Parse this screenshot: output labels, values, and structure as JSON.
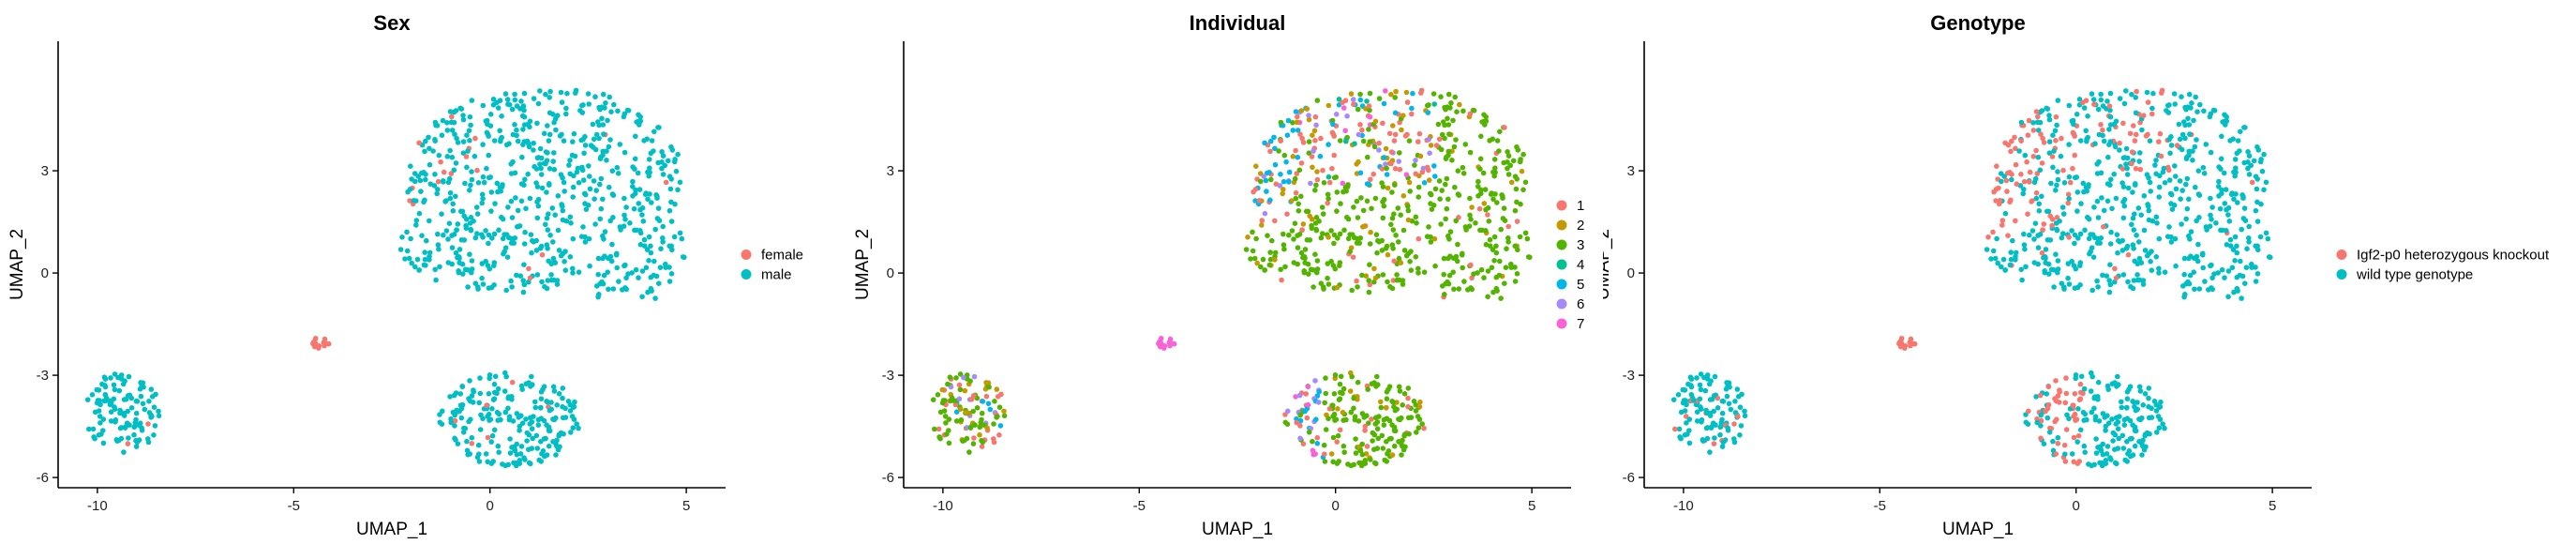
{
  "chart_data": [
    {
      "type": "scatter",
      "title": "Sex",
      "xlabel": "UMAP_1",
      "ylabel": "UMAP_2",
      "xlim": [
        -11,
        6
      ],
      "ylim": [
        -6.3,
        6.8
      ],
      "xticks": [
        -10,
        -5,
        0,
        5
      ],
      "yticks": [
        -6,
        -3,
        0,
        3
      ],
      "grid": false,
      "legend_position": "right",
      "legend": [
        {
          "label": "female",
          "color": "#F8766D"
        },
        {
          "label": "male",
          "color": "#00BFC4"
        }
      ]
    },
    {
      "type": "scatter",
      "title": "Individual",
      "xlabel": "UMAP_1",
      "ylabel": "UMAP_2",
      "xlim": [
        -11,
        6
      ],
      "ylim": [
        -6.3,
        6.8
      ],
      "xticks": [
        -10,
        -5,
        0,
        5
      ],
      "yticks": [
        -6,
        -3,
        0,
        3
      ],
      "grid": false,
      "legend_position": "right",
      "legend": [
        {
          "label": "1",
          "color": "#F8766D"
        },
        {
          "label": "2",
          "color": "#C49A00"
        },
        {
          "label": "3",
          "color": "#53B400"
        },
        {
          "label": "4",
          "color": "#00C094"
        },
        {
          "label": "5",
          "color": "#00B6EB"
        },
        {
          "label": "6",
          "color": "#A58AFF"
        },
        {
          "label": "7",
          "color": "#FB61D7"
        }
      ]
    },
    {
      "type": "scatter",
      "title": "Genotype",
      "xlabel": "UMAP_1",
      "ylabel": "UMAP_2",
      "xlim": [
        -11,
        6
      ],
      "ylim": [
        -6.3,
        6.8
      ],
      "xticks": [
        -10,
        -5,
        0,
        5
      ],
      "yticks": [
        -6,
        -3,
        0,
        3
      ],
      "grid": false,
      "legend_position": "right",
      "legend": [
        {
          "label": "Igf2-p0 heterozygous knockout",
          "color": "#F8766D"
        },
        {
          "label": "wild type genotype",
          "color": "#00BFC4"
        }
      ]
    }
  ]
}
